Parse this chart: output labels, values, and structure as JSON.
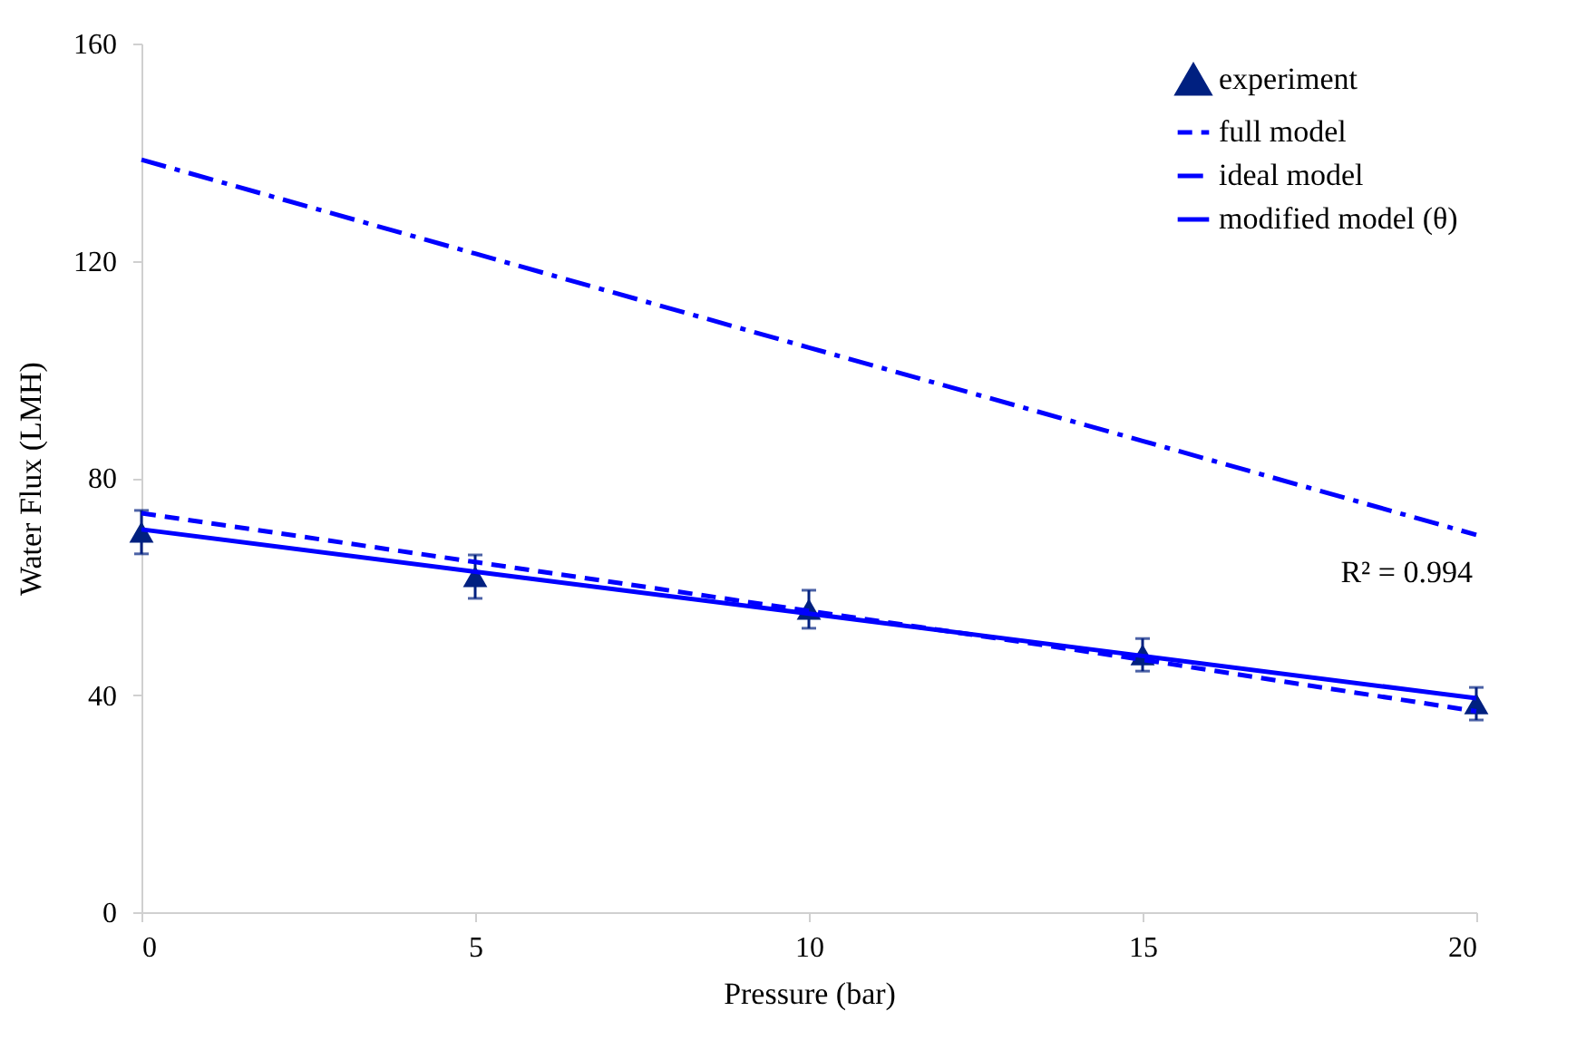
{
  "chart_data": {
    "type": "line",
    "xlabel": "Pressure (bar)",
    "ylabel": "Water Flux (LMH)",
    "x": [
      0,
      5,
      10,
      15,
      20
    ],
    "series": [
      {
        "name": "experiment",
        "type": "scatter",
        "color": "#002080",
        "marker": "triangle",
        "values": [
          70,
          61.8,
          55.8,
          47.4,
          38.4
        ],
        "errors": [
          4,
          4,
          3.5,
          3,
          3
        ]
      },
      {
        "name": "full model",
        "color": "#0000ff",
        "line_style": "dashed",
        "values": [
          73.5,
          64.5,
          55.5,
          46.5,
          37
        ]
      },
      {
        "name": "ideal model",
        "color": "#0000ff",
        "line_style": "dashdot",
        "values": [
          138.6,
          121.3,
          104,
          86.8,
          69.5
        ]
      },
      {
        "name": "modified model (θ)",
        "color": "#0000ff",
        "line_style": "solid",
        "values": [
          70.5,
          62.7,
          55,
          47.2,
          39.4
        ]
      }
    ],
    "xlim": [
      0,
      20
    ],
    "xticks": [
      0,
      5,
      10,
      15,
      20
    ],
    "ylim": [
      0,
      160
    ],
    "yticks": [
      0,
      40,
      80,
      120,
      160
    ],
    "grid": false,
    "legend": "top right",
    "annotations": [
      "R² = 0.994"
    ]
  }
}
